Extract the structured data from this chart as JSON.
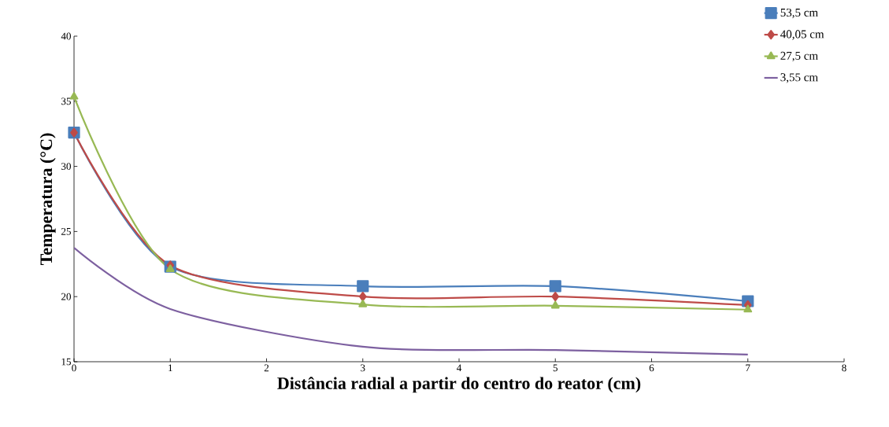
{
  "chart_data": {
    "type": "line",
    "xlabel": "Distância radial a partir do centro do reator (cm)",
    "ylabel": "Temperatura (°C)",
    "xlim": [
      0,
      8
    ],
    "xticks": [
      0,
      1,
      2,
      3,
      4,
      5,
      6,
      7,
      8
    ],
    "ylim": [
      15,
      40
    ],
    "yticks": [
      15,
      20,
      25,
      30,
      35,
      40
    ],
    "grid": false,
    "legend": "top right",
    "line_style": "solid",
    "series": [
      {
        "name": "53,5 cm",
        "color": "#4a7ebb",
        "marker": "square",
        "x": [
          0,
          1,
          3,
          5,
          7
        ],
        "values": [
          32.6,
          22.3,
          20.8,
          20.8,
          19.65
        ]
      },
      {
        "name": "40,05 cm",
        "color": "#be4b48",
        "marker": "diamond",
        "x": [
          0,
          1,
          3,
          5,
          7
        ],
        "values": [
          32.6,
          22.4,
          20.0,
          20.0,
          19.35
        ]
      },
      {
        "name": "27,5 cm",
        "color": "#98b954",
        "marker": "triangle",
        "x": [
          0,
          1,
          3,
          5,
          7
        ],
        "values": [
          35.35,
          22.1,
          19.4,
          19.3,
          19.0
        ]
      },
      {
        "name": "3,55 cm",
        "color": "#7d60a0",
        "marker": "none",
        "x": [
          0,
          1,
          3,
          5,
          7
        ],
        "values": [
          23.75,
          19.05,
          16.15,
          15.9,
          15.55
        ]
      }
    ]
  }
}
